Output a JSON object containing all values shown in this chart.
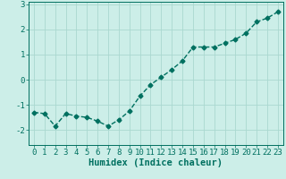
{
  "x": [
    0,
    1,
    2,
    3,
    4,
    5,
    6,
    7,
    8,
    9,
    10,
    11,
    12,
    13,
    14,
    15,
    16,
    17,
    18,
    19,
    20,
    21,
    22,
    23
  ],
  "y": [
    -1.3,
    -1.35,
    -1.85,
    -1.35,
    -1.45,
    -1.5,
    -1.65,
    -1.85,
    -1.6,
    -1.25,
    -0.65,
    -0.2,
    0.1,
    0.4,
    0.75,
    1.3,
    1.3,
    1.3,
    1.45,
    1.6,
    1.85,
    2.3,
    2.45,
    2.7
  ],
  "line_color": "#007060",
  "marker": "D",
  "marker_size": 2.5,
  "line_width": 1.0,
  "background_color": "#cceee8",
  "grid_color": "#aad8d0",
  "xlabel": "Humidex (Indice chaleur)",
  "xlabel_fontsize": 7.5,
  "tick_fontsize": 6.5,
  "ylim": [
    -2.6,
    3.1
  ],
  "xlim": [
    -0.5,
    23.5
  ],
  "yticks": [
    -2,
    -1,
    0,
    1,
    2,
    3
  ],
  "xticks": [
    0,
    1,
    2,
    3,
    4,
    5,
    6,
    7,
    8,
    9,
    10,
    11,
    12,
    13,
    14,
    15,
    16,
    17,
    18,
    19,
    20,
    21,
    22,
    23
  ]
}
